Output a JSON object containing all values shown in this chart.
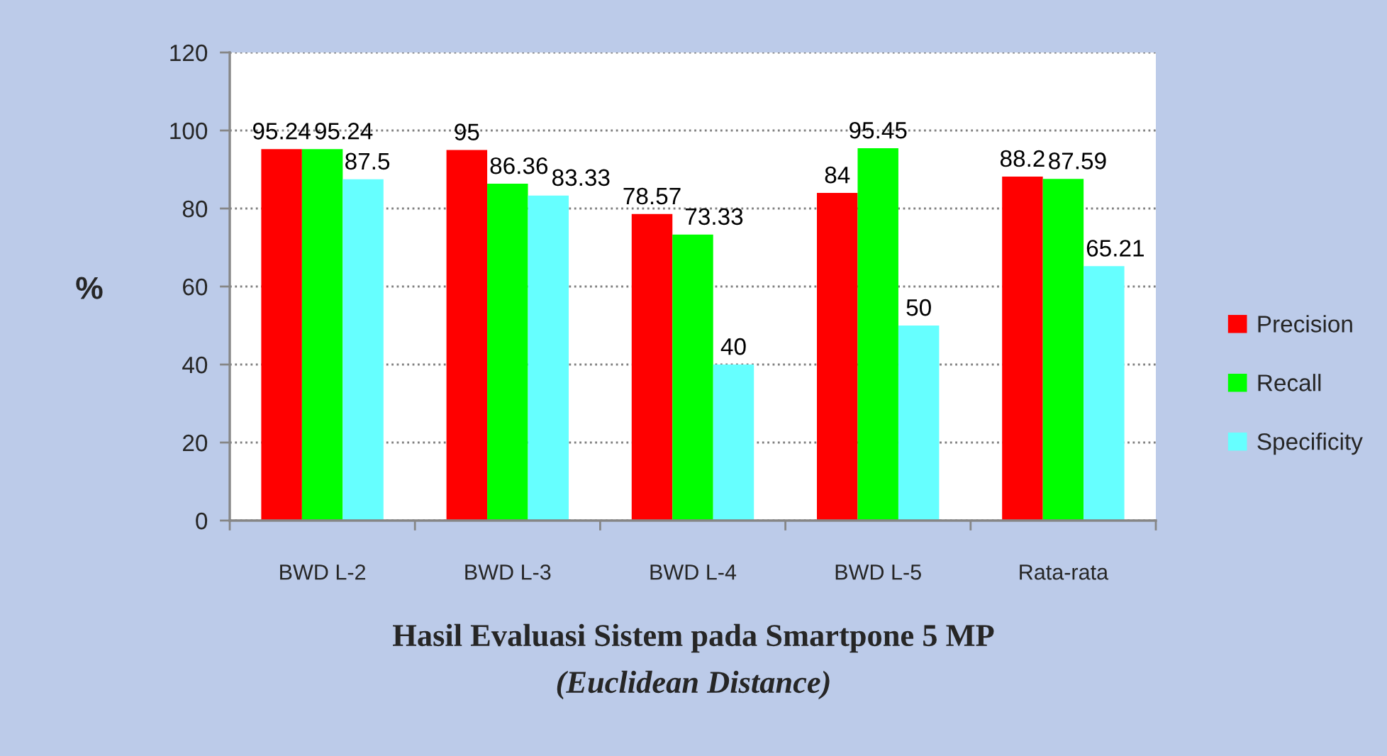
{
  "chart_data": {
    "type": "bar",
    "title": "Hasil Evaluasi Sistem pada Smartpone 5 MP",
    "subtitle": "(Euclidean Distance)",
    "ylabel": "%",
    "categories": [
      "BWD L-2",
      "BWD L-3",
      "BWD L-4",
      "BWD L-5",
      "Rata-rata"
    ],
    "series": [
      {
        "name": "Precision",
        "color": "#ff0000",
        "values": [
          95.24,
          95,
          78.57,
          84,
          88.2
        ]
      },
      {
        "name": "Recall",
        "color": "#00ff00",
        "values": [
          95.24,
          86.36,
          73.33,
          95.45,
          87.59
        ]
      },
      {
        "name": "Specificity",
        "color": "#66ffff",
        "values": [
          87.5,
          83.33,
          40,
          50,
          65.21
        ]
      }
    ],
    "ylim": [
      0,
      120
    ],
    "yticks": [
      0,
      20,
      40,
      60,
      80,
      100,
      120
    ],
    "grid": "y",
    "legend": "right",
    "data_labels": true
  }
}
